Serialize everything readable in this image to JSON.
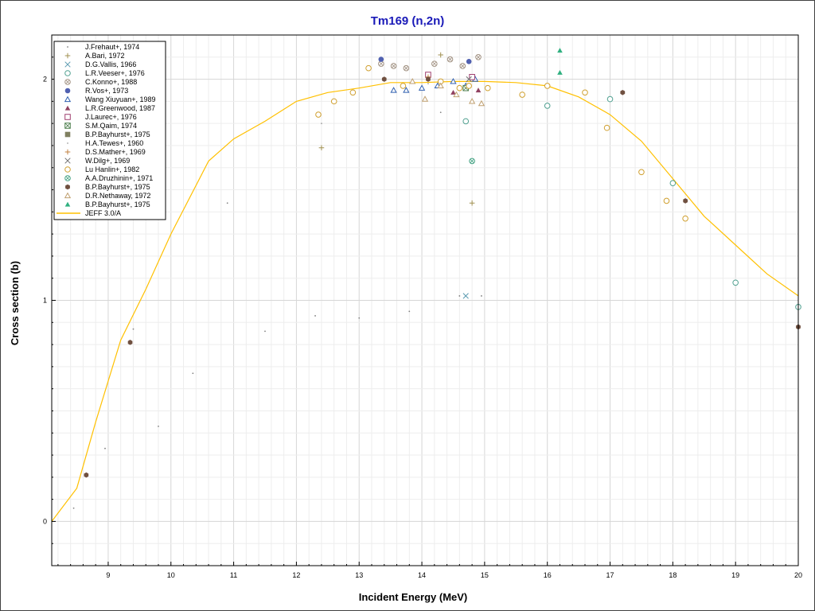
{
  "chart_data": {
    "type": "scatter",
    "title": "Tm169 (n,2n)",
    "xlabel": "Incident Energy (MeV)",
    "ylabel": "Cross section (b)",
    "xlim": [
      8.1,
      20.0
    ],
    "ylim": [
      -0.2,
      2.2
    ],
    "x_ticks": [
      9,
      10,
      11,
      12,
      13,
      14,
      15,
      16,
      17,
      18,
      19,
      20
    ],
    "y_ticks": [
      0,
      1,
      2
    ],
    "grid": true,
    "legend_position": "top-left",
    "colors": {
      "title": "#1a1ab8",
      "curve": "#ffc000",
      "grid_major": "#d6d6d6",
      "grid_minor": "#ededed"
    },
    "series": [
      {
        "name": "J.Frehaut+, 1974",
        "marker": "dot",
        "color": "#808080",
        "points": [
          [
            8.45,
            0.06
          ],
          [
            8.95,
            0.33
          ],
          [
            9.4,
            0.87
          ],
          [
            9.8,
            0.43
          ],
          [
            10.35,
            0.67
          ],
          [
            10.9,
            1.44
          ],
          [
            11.5,
            0.86
          ],
          [
            12.3,
            0.93
          ],
          [
            13.0,
            0.92
          ],
          [
            13.8,
            0.95
          ],
          [
            14.3,
            1.85
          ],
          [
            14.6,
            1.02
          ],
          [
            14.95,
            1.02
          ]
        ]
      },
      {
        "name": "A.Bari, 1972",
        "marker": "plus",
        "color": "#a09050",
        "points": [
          [
            12.4,
            1.69
          ],
          [
            14.3,
            2.11
          ],
          [
            14.8,
            1.44
          ]
        ]
      },
      {
        "name": "D.G.Vallis, 1966",
        "marker": "cross",
        "color": "#5a9ab0",
        "points": [
          [
            14.7,
            1.02
          ]
        ]
      },
      {
        "name": "L.R.Veeser+, 1976",
        "marker": "circle-open",
        "color": "#50a090",
        "points": [
          [
            14.7,
            1.81
          ],
          [
            16.0,
            1.88
          ],
          [
            17.0,
            1.91
          ],
          [
            18.0,
            1.53
          ],
          [
            19.0,
            1.08
          ],
          [
            20.0,
            0.97
          ]
        ]
      },
      {
        "name": "C.Konno+, 1988",
        "marker": "circle-dot",
        "color": "#a09080",
        "points": [
          [
            13.35,
            2.07
          ],
          [
            13.55,
            2.06
          ],
          [
            13.75,
            2.05
          ],
          [
            14.2,
            2.07
          ],
          [
            14.45,
            2.09
          ],
          [
            14.65,
            2.06
          ],
          [
            14.9,
            2.1
          ]
        ]
      },
      {
        "name": "R.Vos+, 1973",
        "marker": "circle-filled",
        "color": "#5060b0",
        "points": [
          [
            13.35,
            2.09
          ],
          [
            14.75,
            2.08
          ]
        ]
      },
      {
        "name": "Wang Xiuyuan+, 1989",
        "marker": "triangle-open",
        "color": "#3060b0",
        "points": [
          [
            13.55,
            1.95
          ],
          [
            13.75,
            1.95
          ],
          [
            14.0,
            1.96
          ],
          [
            14.25,
            1.97
          ],
          [
            14.5,
            1.99
          ],
          [
            14.7,
            1.97
          ],
          [
            14.85,
            2.0
          ]
        ]
      },
      {
        "name": "L.R.Greenwood, 1987",
        "marker": "triangle-filled",
        "color": "#904060",
        "points": [
          [
            14.5,
            1.94
          ],
          [
            14.9,
            1.95
          ]
        ]
      },
      {
        "name": "J.Laurec+, 1976",
        "marker": "square-open",
        "color": "#a04070",
        "points": [
          [
            14.1,
            2.02
          ],
          [
            14.8,
            2.01
          ]
        ]
      },
      {
        "name": "S.M.Qaim, 1974",
        "marker": "square-cross",
        "color": "#508050",
        "points": [
          [
            14.7,
            1.96
          ]
        ]
      },
      {
        "name": "B.P.Bayhurst+, 1975",
        "marker": "square-filled",
        "color": "#808060",
        "points": []
      },
      {
        "name": "H.A.Tewes+, 1960",
        "marker": "dot",
        "color": "#a0a0a0",
        "points": [
          [
            12.4,
            1.8
          ],
          [
            14.1,
            1.98
          ]
        ]
      },
      {
        "name": "D.S.Mather+, 1969",
        "marker": "plus",
        "color": "#c08040",
        "points": [
          [
            14.1,
            2.01
          ]
        ]
      },
      {
        "name": "W.Dilg+, 1969",
        "marker": "cross",
        "color": "#707070",
        "points": [
          [
            14.75,
            2.0
          ]
        ]
      },
      {
        "name": "Lu Hanlin+, 1982",
        "marker": "circle-open",
        "color": "#d0a030",
        "points": [
          [
            12.35,
            1.84
          ],
          [
            12.6,
            1.9
          ],
          [
            12.9,
            1.94
          ],
          [
            13.15,
            2.05
          ],
          [
            13.7,
            1.97
          ],
          [
            14.3,
            1.99
          ],
          [
            14.6,
            1.96
          ],
          [
            14.75,
            1.97
          ],
          [
            15.05,
            1.96
          ],
          [
            15.6,
            1.93
          ],
          [
            16.0,
            1.97
          ],
          [
            16.6,
            1.94
          ],
          [
            16.95,
            1.78
          ],
          [
            17.5,
            1.58
          ],
          [
            17.9,
            1.45
          ],
          [
            18.2,
            1.37
          ]
        ]
      },
      {
        "name": "A.A.Druzhinin+, 1971",
        "marker": "circle-dot",
        "color": "#40a080",
        "points": [
          [
            14.8,
            1.63
          ]
        ]
      },
      {
        "name": "B.P.Bayhurst+, 1975",
        "marker": "hex-filled",
        "color": "#705040",
        "points": [
          [
            8.65,
            0.21
          ],
          [
            9.35,
            0.81
          ],
          [
            13.4,
            2.0
          ],
          [
            14.1,
            2.0
          ],
          [
            17.2,
            1.94
          ],
          [
            18.2,
            1.45
          ],
          [
            20.0,
            0.88
          ]
        ]
      },
      {
        "name": "D.R.Nethaway, 1972",
        "marker": "triangle-open",
        "color": "#c0a070",
        "points": [
          [
            13.85,
            1.99
          ],
          [
            14.05,
            1.91
          ],
          [
            14.3,
            1.97
          ],
          [
            14.55,
            1.93
          ],
          [
            14.8,
            1.9
          ],
          [
            14.95,
            1.89
          ]
        ]
      },
      {
        "name": "B.P.Bayhurst+, 1975",
        "marker": "triangle-filled",
        "color": "#30b080",
        "points": [
          [
            16.2,
            2.13
          ],
          [
            16.2,
            2.03
          ]
        ]
      }
    ],
    "curve": {
      "name": "JEFF 3.0/A",
      "color": "#ffc000",
      "points": [
        [
          8.1,
          0.0
        ],
        [
          8.5,
          0.15
        ],
        [
          8.8,
          0.45
        ],
        [
          9.2,
          0.82
        ],
        [
          9.6,
          1.05
        ],
        [
          10.0,
          1.3
        ],
        [
          10.6,
          1.63
        ],
        [
          11.0,
          1.73
        ],
        [
          11.5,
          1.81
        ],
        [
          12.0,
          1.9
        ],
        [
          12.5,
          1.94
        ],
        [
          13.0,
          1.96
        ],
        [
          13.5,
          1.985
        ],
        [
          14.0,
          1.985
        ],
        [
          14.5,
          1.99
        ],
        [
          15.0,
          1.99
        ],
        [
          15.5,
          1.985
        ],
        [
          16.0,
          1.97
        ],
        [
          16.5,
          1.92
        ],
        [
          17.0,
          1.84
        ],
        [
          17.5,
          1.72
        ],
        [
          18.0,
          1.55
        ],
        [
          18.5,
          1.38
        ],
        [
          19.0,
          1.25
        ],
        [
          19.5,
          1.12
        ],
        [
          20.0,
          1.02
        ]
      ]
    }
  }
}
